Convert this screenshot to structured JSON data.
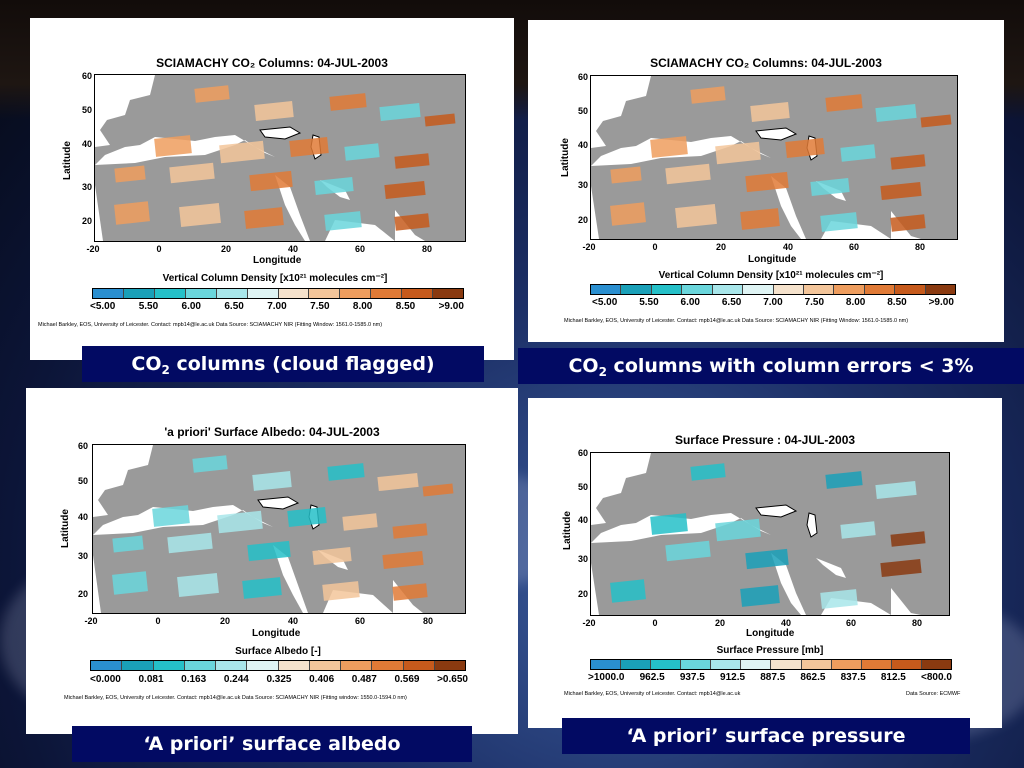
{
  "panels": [
    {
      "title": "SCIAMACHY CO₂ Columns: 04-JUL-2003",
      "yticks": [
        "60",
        "50",
        "40",
        "30",
        "20"
      ],
      "xticks": [
        "-20",
        "0",
        "20",
        "40",
        "60",
        "80"
      ],
      "xlabel": "Longitude",
      "ylabel": "Latitude",
      "colorbar_title": "Vertical Column Density [x10²¹ molecules cm⁻²]",
      "colorbar_labels": [
        "<5.00",
        "5.50",
        "6.00",
        "6.50",
        "7.00",
        "7.50",
        "8.00",
        "8.50",
        ">9.00"
      ],
      "credit_left": "Michael Barkley, EOS, University of Leicester. Contact: mpb14@le.ac.uk   Data Source: SCIAMACHY NIR (Fitting Window: 1561.0-1585.0 nm)",
      "credit_right": "",
      "caption_pre": "CO",
      "caption_sub": "2",
      "caption_post": " columns (cloud flagged)",
      "palette": "co2"
    },
    {
      "title": "SCIAMACHY CO₂ Columns: 04-JUL-2003",
      "yticks": [
        "60",
        "50",
        "40",
        "30",
        "20"
      ],
      "xticks": [
        "-20",
        "0",
        "20",
        "40",
        "60",
        "80"
      ],
      "xlabel": "Longitude",
      "ylabel": "Latitude",
      "colorbar_title": "Vertical Column Density [x10²¹ molecules cm⁻²]",
      "colorbar_labels": [
        "<5.00",
        "5.50",
        "6.00",
        "6.50",
        "7.00",
        "7.50",
        "8.00",
        "8.50",
        ">9.00"
      ],
      "credit_left": "Michael Barkley, EOS, University of Leicester. Contact: mpb14@le.ac.uk   Data Source: SCIAMACHY NIR (Fitting Window: 1561.0-1585.0 nm)",
      "credit_right": "",
      "caption_pre": "CO",
      "caption_sub": "2",
      "caption_post": " columns with column errors < 3%",
      "palette": "co2"
    },
    {
      "title": "'a priori' Surface Albedo: 04-JUL-2003",
      "yticks": [
        "60",
        "50",
        "40",
        "30",
        "20"
      ],
      "xticks": [
        "-20",
        "0",
        "20",
        "40",
        "60",
        "80"
      ],
      "xlabel": "Longitude",
      "ylabel": "Latitude",
      "colorbar_title": "Surface Albedo [-]",
      "colorbar_labels": [
        "<0.000",
        "0.081",
        "0.163",
        "0.244",
        "0.325",
        "0.406",
        "0.487",
        "0.569",
        ">0.650"
      ],
      "credit_left": "Michael Barkley, EOS, University of Leicester. Contact: mpb14@le.ac.uk   Data Source: SCIAMACHY NIR (Fitting window: 1550.0-1594.0 nm)",
      "credit_right": "",
      "caption_pre": "‘A priori’ surface albedo",
      "caption_sub": "",
      "caption_post": "",
      "palette": "albedo"
    },
    {
      "title": "Surface Pressure : 04-JUL-2003",
      "yticks": [
        "60",
        "50",
        "40",
        "30",
        "20"
      ],
      "xticks": [
        "-20",
        "0",
        "20",
        "40",
        "60",
        "80"
      ],
      "xlabel": "Longitude",
      "ylabel": "Latitude",
      "colorbar_title": "Surface Pressure [mb]",
      "colorbar_labels": [
        ">1000.0",
        "962.5",
        "937.5",
        "912.5",
        "887.5",
        "862.5",
        "837.5",
        "812.5",
        "<800.0"
      ],
      "credit_left": "Michael Barkley, EOS, University of Leicester. Contact: mpb14@le.ac.uk",
      "credit_right": "Data Source: ECMWF",
      "caption_pre": "‘A priori’ surface pressure",
      "caption_sub": "",
      "caption_post": "",
      "palette": "pressure"
    }
  ],
  "colors": {
    "caption_bg": "#020a63",
    "land": "#9a9a9a",
    "colorbar": [
      "#2a8fd0",
      "#1aa0b8",
      "#25c0c8",
      "#6ad6dc",
      "#a8e6ea",
      "#dff4f4",
      "#f5e2cc",
      "#f3c59a",
      "#ee9d5e",
      "#e07a36",
      "#c65a1c",
      "#8a3a10"
    ]
  }
}
